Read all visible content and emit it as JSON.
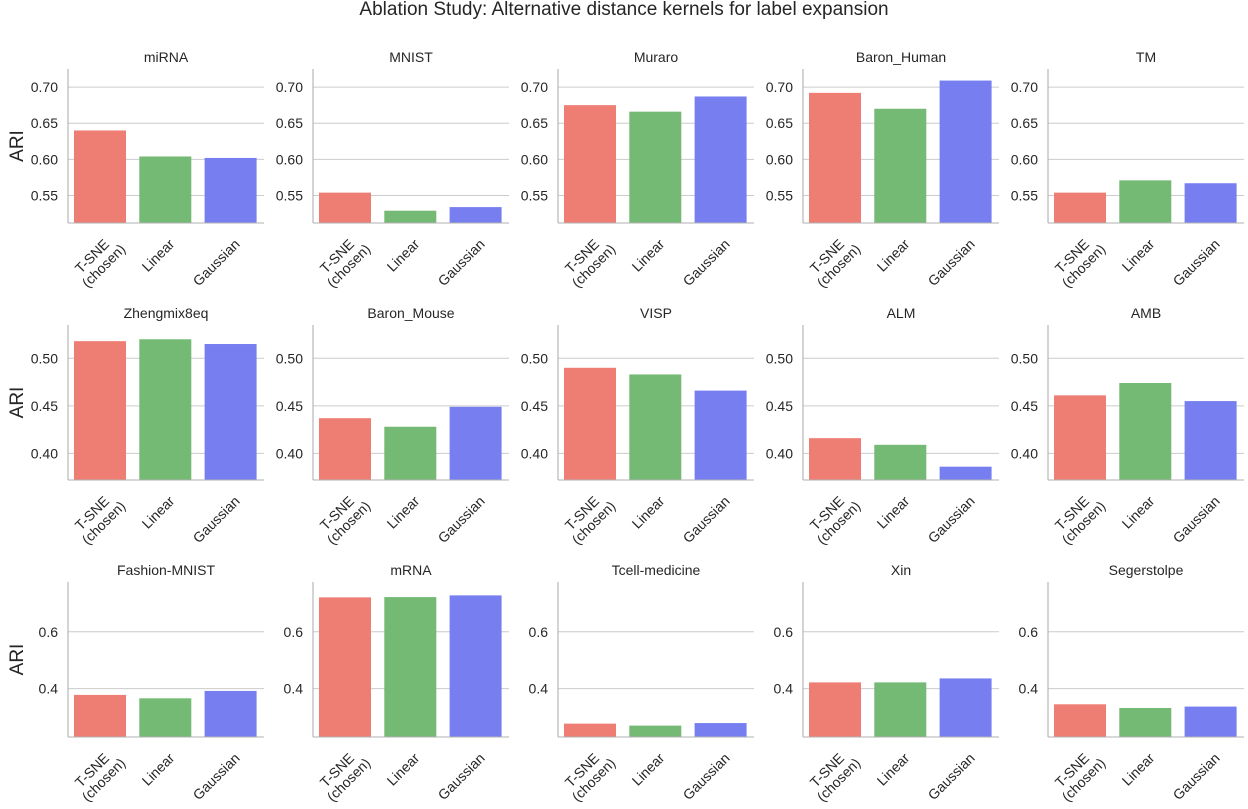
{
  "title": "Ablation Study: Alternative distance kernels for label expansion",
  "y_axis_label": "ARI",
  "colors": {
    "T-SNE (chosen)": "#ee7d74",
    "Linear": "#74b974",
    "Gaussian": "#777ff0"
  },
  "chart_data": [
    {
      "type": "bar",
      "title": "miRNA",
      "categories": [
        "T-SNE (chosen)",
        "Linear",
        "Gaussian"
      ],
      "values": [
        0.64,
        0.604,
        0.602
      ],
      "ylim": [
        0.512,
        0.725
      ],
      "yticks": [
        0.55,
        0.6,
        0.65,
        0.7
      ],
      "tick_labels": [
        "0.55",
        "0.60",
        "0.65",
        "0.70"
      ],
      "ylabel": "ARI"
    },
    {
      "type": "bar",
      "title": "MNIST",
      "categories": [
        "T-SNE (chosen)",
        "Linear",
        "Gaussian"
      ],
      "values": [
        0.554,
        0.529,
        0.534
      ],
      "ylim": [
        0.512,
        0.725
      ],
      "yticks": [
        0.55,
        0.6,
        0.65,
        0.7
      ],
      "tick_labels": [
        "0.55",
        "0.60",
        "0.65",
        "0.70"
      ],
      "ylabel": ""
    },
    {
      "type": "bar",
      "title": "Muraro",
      "categories": [
        "T-SNE (chosen)",
        "Linear",
        "Gaussian"
      ],
      "values": [
        0.675,
        0.666,
        0.687
      ],
      "ylim": [
        0.512,
        0.725
      ],
      "yticks": [
        0.55,
        0.6,
        0.65,
        0.7
      ],
      "tick_labels": [
        "0.55",
        "0.60",
        "0.65",
        "0.70"
      ],
      "ylabel": ""
    },
    {
      "type": "bar",
      "title": "Baron_Human",
      "categories": [
        "T-SNE (chosen)",
        "Linear",
        "Gaussian"
      ],
      "values": [
        0.692,
        0.67,
        0.709
      ],
      "ylim": [
        0.512,
        0.725
      ],
      "yticks": [
        0.55,
        0.6,
        0.65,
        0.7
      ],
      "tick_labels": [
        "0.55",
        "0.60",
        "0.65",
        "0.70"
      ],
      "ylabel": ""
    },
    {
      "type": "bar",
      "title": "TM",
      "categories": [
        "T-SNE (chosen)",
        "Linear",
        "Gaussian"
      ],
      "values": [
        0.554,
        0.571,
        0.567
      ],
      "ylim": [
        0.512,
        0.725
      ],
      "yticks": [
        0.55,
        0.6,
        0.65,
        0.7
      ],
      "tick_labels": [
        "0.55",
        "0.60",
        "0.65",
        "0.70"
      ],
      "ylabel": ""
    },
    {
      "type": "bar",
      "title": "Zhengmix8eq",
      "categories": [
        "T-SNE (chosen)",
        "Linear",
        "Gaussian"
      ],
      "values": [
        0.518,
        0.52,
        0.515
      ],
      "ylim": [
        0.372,
        0.535
      ],
      "yticks": [
        0.4,
        0.45,
        0.5
      ],
      "tick_labels": [
        "0.40",
        "0.45",
        "0.50"
      ],
      "ylabel": "ARI"
    },
    {
      "type": "bar",
      "title": "Baron_Mouse",
      "categories": [
        "T-SNE (chosen)",
        "Linear",
        "Gaussian"
      ],
      "values": [
        0.437,
        0.428,
        0.449
      ],
      "ylim": [
        0.372,
        0.535
      ],
      "yticks": [
        0.4,
        0.45,
        0.5
      ],
      "tick_labels": [
        "0.40",
        "0.45",
        "0.50"
      ],
      "ylabel": ""
    },
    {
      "type": "bar",
      "title": "VISP",
      "categories": [
        "T-SNE (chosen)",
        "Linear",
        "Gaussian"
      ],
      "values": [
        0.49,
        0.483,
        0.466
      ],
      "ylim": [
        0.372,
        0.535
      ],
      "yticks": [
        0.4,
        0.45,
        0.5
      ],
      "tick_labels": [
        "0.40",
        "0.45",
        "0.50"
      ],
      "ylabel": ""
    },
    {
      "type": "bar",
      "title": "ALM",
      "categories": [
        "T-SNE (chosen)",
        "Linear",
        "Gaussian"
      ],
      "values": [
        0.416,
        0.409,
        0.386
      ],
      "ylim": [
        0.372,
        0.535
      ],
      "yticks": [
        0.4,
        0.45,
        0.5
      ],
      "tick_labels": [
        "0.40",
        "0.45",
        "0.50"
      ],
      "ylabel": ""
    },
    {
      "type": "bar",
      "title": "AMB",
      "categories": [
        "T-SNE (chosen)",
        "Linear",
        "Gaussian"
      ],
      "values": [
        0.461,
        0.474,
        0.455
      ],
      "ylim": [
        0.372,
        0.535
      ],
      "yticks": [
        0.4,
        0.45,
        0.5
      ],
      "tick_labels": [
        "0.40",
        "0.45",
        "0.50"
      ],
      "ylabel": ""
    },
    {
      "type": "bar",
      "title": "Fashion-MNIST",
      "categories": [
        "T-SNE (chosen)",
        "Linear",
        "Gaussian"
      ],
      "values": [
        0.378,
        0.366,
        0.392
      ],
      "ylim": [
        0.23,
        0.775
      ],
      "yticks": [
        0.4,
        0.6
      ],
      "tick_labels": [
        "0.4",
        "0.6"
      ],
      "ylabel": "ARI"
    },
    {
      "type": "bar",
      "title": "mRNA",
      "categories": [
        "T-SNE (chosen)",
        "Linear",
        "Gaussian"
      ],
      "values": [
        0.721,
        0.722,
        0.728
      ],
      "ylim": [
        0.23,
        0.775
      ],
      "yticks": [
        0.4,
        0.6
      ],
      "tick_labels": [
        "0.4",
        "0.6"
      ],
      "ylabel": ""
    },
    {
      "type": "bar",
      "title": "Tcell-medicine",
      "categories": [
        "T-SNE (chosen)",
        "Linear",
        "Gaussian"
      ],
      "values": [
        0.277,
        0.27,
        0.279
      ],
      "ylim": [
        0.23,
        0.775
      ],
      "yticks": [
        0.4,
        0.6
      ],
      "tick_labels": [
        "0.4",
        "0.6"
      ],
      "ylabel": ""
    },
    {
      "type": "bar",
      "title": "Xin",
      "categories": [
        "T-SNE (chosen)",
        "Linear",
        "Gaussian"
      ],
      "values": [
        0.422,
        0.422,
        0.436
      ],
      "ylim": [
        0.23,
        0.775
      ],
      "yticks": [
        0.4,
        0.6
      ],
      "tick_labels": [
        "0.4",
        "0.6"
      ],
      "ylabel": ""
    },
    {
      "type": "bar",
      "title": "Segerstolpe",
      "categories": [
        "T-SNE (chosen)",
        "Linear",
        "Gaussian"
      ],
      "values": [
        0.345,
        0.332,
        0.337
      ],
      "ylim": [
        0.23,
        0.775
      ],
      "yticks": [
        0.4,
        0.6
      ],
      "tick_labels": [
        "0.4",
        "0.6"
      ],
      "ylabel": ""
    }
  ]
}
